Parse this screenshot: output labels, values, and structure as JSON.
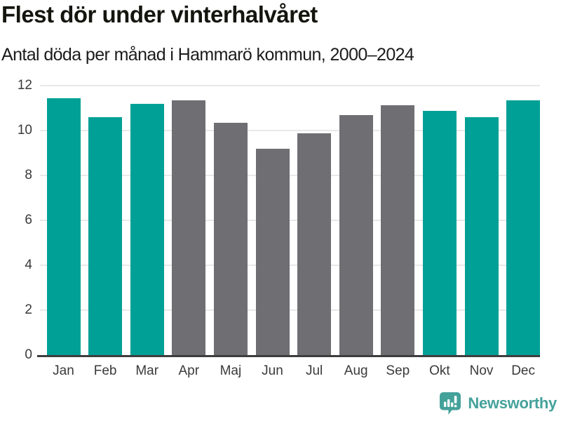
{
  "header": {
    "title": "Flest dör under vinterhalvåret",
    "subtitle": "Antal döda per månad i Hammarö kommun, 2000–2024"
  },
  "chart_data": {
    "type": "bar",
    "title": "Flest dör under vinterhalvåret",
    "subtitle": "Antal döda per månad i Hammarö kommun, 2000–2024",
    "categories": [
      "Jan",
      "Feb",
      "Mar",
      "Apr",
      "Maj",
      "Jun",
      "Jul",
      "Aug",
      "Sep",
      "Okt",
      "Nov",
      "Dec"
    ],
    "values": [
      11.45,
      10.6,
      11.2,
      11.35,
      10.35,
      9.2,
      9.9,
      10.7,
      11.15,
      10.9,
      10.6,
      11.35
    ],
    "bar_colors": [
      "#00a096",
      "#00a096",
      "#00a096",
      "#6e6e73",
      "#6e6e73",
      "#6e6e73",
      "#6e6e73",
      "#6e6e73",
      "#6e6e73",
      "#00a096",
      "#00a096",
      "#00a096"
    ],
    "ylim": [
      0,
      12
    ],
    "yticks": [
      0,
      2,
      4,
      6,
      8,
      10,
      12
    ],
    "xlabel": "",
    "ylabel": "",
    "grid": "horizontal",
    "legend": "none",
    "colors": {
      "winter_highlight": "#00a096",
      "summer_neutral": "#6e6e73",
      "gridline": "#e8e8e8",
      "axis_line": "#3d3d3d",
      "tick_label": "#3a3a3a"
    }
  },
  "footer": {
    "brand": "Newsworthy",
    "brand_color": "#45a29b",
    "logo_icon": "newsworthy-bubble-chart-icon"
  }
}
